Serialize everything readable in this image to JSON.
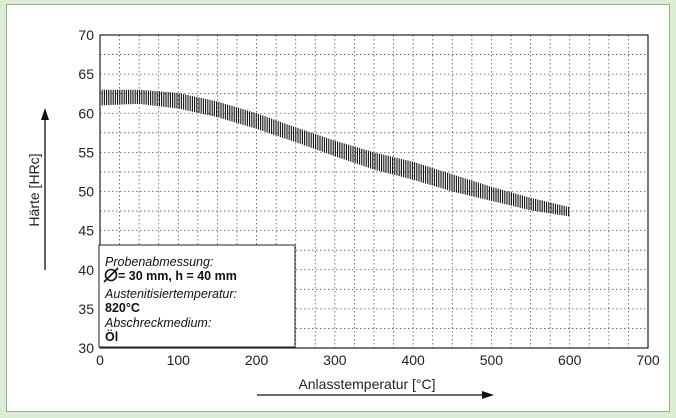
{
  "chart_data": {
    "type": "area",
    "xlabel": "Anlasstemperatur [°C]",
    "ylabel": "Härte [HRc]",
    "xlim": [
      0,
      700
    ],
    "ylim": [
      30,
      70
    ],
    "xticks": [
      0,
      100,
      200,
      300,
      400,
      500,
      600,
      700
    ],
    "yticks": [
      30,
      35,
      40,
      45,
      50,
      55,
      60,
      65,
      70
    ],
    "grid": true,
    "series": [
      {
        "x": [
          0,
          50,
          100,
          150,
          200,
          250,
          300,
          350,
          400,
          450,
          500,
          550,
          600
        ],
        "upper": [
          63.0,
          63.0,
          62.6,
          61.5,
          60.0,
          58.2,
          56.5,
          55.0,
          53.8,
          52.2,
          50.6,
          49.2,
          48.0
        ],
        "lower": [
          61.0,
          61.2,
          60.6,
          59.5,
          58.0,
          56.3,
          54.5,
          52.8,
          51.5,
          50.0,
          48.8,
          47.6,
          46.8
        ]
      }
    ],
    "band_color": "#111111"
  },
  "info_box": {
    "line1": "Probenabmessung:",
    "line2": "= 30 mm, h = 40 mm",
    "line3": "Austenitisiertemperatur:",
    "line4": "820°C",
    "line5": "Abschreckmedium:",
    "line6": "Öl"
  }
}
